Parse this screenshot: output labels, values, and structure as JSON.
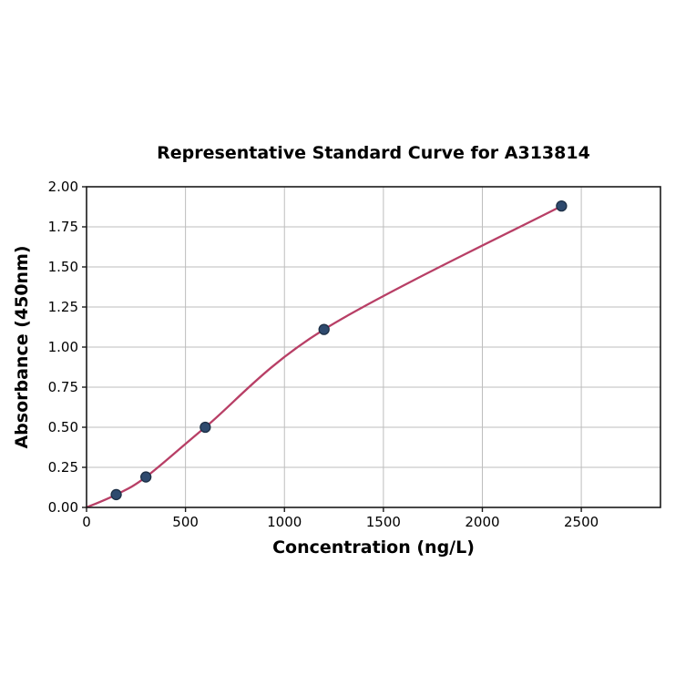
{
  "figure": {
    "background": "#ffffff"
  },
  "chart_data": {
    "type": "scatter",
    "title": "Representative Standard Curve for A313814",
    "xlabel": "Concentration (ng/L)",
    "ylabel": "Absorbance (450nm)",
    "xlim": [
      0,
      2900
    ],
    "ylim": [
      0,
      2.0
    ],
    "grid": true,
    "legend": "none",
    "xticks": {
      "values": [
        0,
        500,
        1000,
        1500,
        2000,
        2500
      ],
      "labels": [
        "0",
        "500",
        "1000",
        "1500",
        "2000",
        "2500"
      ]
    },
    "yticks": {
      "values": [
        0,
        0.25,
        0.5,
        0.75,
        1.0,
        1.25,
        1.5,
        1.75,
        2.0
      ],
      "labels": [
        "0.00",
        "0.25",
        "0.50",
        "0.75",
        "1.00",
        "1.25",
        "1.50",
        "1.75",
        "2.00"
      ]
    },
    "series": [
      {
        "name": "fitted-curve",
        "type": "line",
        "smooth": true,
        "x": [
          0,
          150,
          300,
          600,
          1200,
          2400
        ],
        "y": [
          0,
          0.08,
          0.19,
          0.5,
          1.11,
          1.88
        ]
      },
      {
        "name": "standard-points",
        "type": "scatter",
        "x": [
          150,
          300,
          600,
          1200,
          2400
        ],
        "y": [
          0.08,
          0.19,
          0.5,
          1.11,
          1.88
        ]
      }
    ],
    "colors": {
      "curve": "#b83f66",
      "marker_fill": "#2e4a6e",
      "marker_edge": "#1d3046",
      "grid": "#bdbdbd",
      "axis": "#1a1a1a",
      "text": "#000000",
      "background": "#ffffff"
    }
  }
}
